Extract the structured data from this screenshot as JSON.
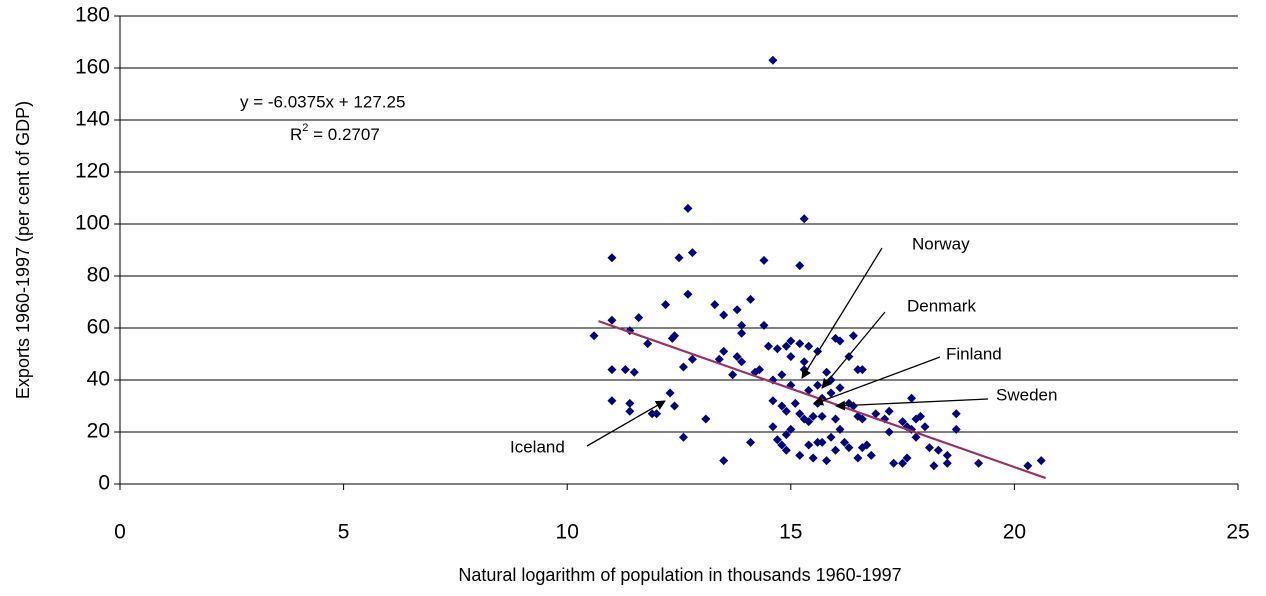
{
  "chart_data": {
    "type": "scatter",
    "xlabel": "Natural logarithm of population in thousands 1960-1997",
    "ylabel": "Exports 1960-1997 (per cent of GDP)",
    "xlim": [
      0,
      25
    ],
    "xticks": [
      0,
      5,
      10,
      15,
      20,
      25
    ],
    "ylim": [
      0,
      180
    ],
    "yticks": [
      0,
      20,
      40,
      60,
      80,
      100,
      120,
      140,
      160,
      180
    ],
    "grid": true,
    "series": [
      {
        "color": "#000080",
        "x": [
          14.6,
          12.7,
          15.3,
          11.0,
          12.5,
          12.8,
          14.4,
          15.2,
          12.7,
          14.1,
          13.8,
          13.3,
          13.5,
          12.2,
          11.0,
          11.6,
          10.6,
          11.4,
          12.4,
          12.35,
          11.8,
          13.9,
          13.9,
          14.4,
          13.5,
          13.4,
          12.8,
          12.6,
          11.0,
          11.3,
          11.5,
          13.8,
          13.9,
          14.3,
          14.5,
          14.7,
          14.9,
          15.0,
          15.2,
          15.4,
          15.6,
          15.0,
          14.8,
          15.3,
          16.1,
          16.4,
          16.0,
          16.3,
          16.5,
          16.6,
          14.2,
          14.6,
          13.7,
          11.0,
          11.4,
          11.4,
          12.0,
          11.9,
          12.3,
          12.4,
          13.1,
          12.6,
          13.5,
          14.1,
          14.6,
          14.7,
          14.8,
          14.9,
          14.9,
          15.0,
          15.2,
          15.3,
          15.4,
          15.5,
          15.4,
          15.5,
          15.6,
          15.7,
          15.9,
          16.0,
          15.8,
          15.2,
          15.6,
          15.7,
          15.9,
          16.0,
          16.1,
          16.2,
          16.3,
          16.4,
          16.5,
          16.6,
          16.7,
          16.8,
          16.5,
          16.6,
          16.9,
          17.1,
          17.2,
          17.2,
          17.3,
          17.5,
          17.6,
          17.5,
          17.6,
          17.7,
          17.8,
          17.9,
          17.7,
          17.8,
          18.0,
          18.1,
          18.2,
          18.3,
          18.5,
          18.5,
          18.7,
          18.7,
          19.2,
          20.3,
          20.6,
          14.6,
          14.8,
          15.0,
          15.1,
          15.4,
          14.9,
          15.6,
          15.9,
          16.1,
          16.3,
          15.7,
          15.8,
          15.3
        ],
        "values": [
          163,
          106,
          102,
          87,
          87,
          89,
          86,
          84,
          73,
          71,
          67,
          69,
          65,
          69,
          63,
          64,
          57,
          59,
          57,
          56,
          54,
          61,
          58,
          61,
          51,
          48,
          48,
          45,
          44,
          44,
          43,
          49,
          47,
          44,
          53,
          52,
          53,
          55,
          54,
          53,
          51,
          49,
          42,
          47,
          55,
          57,
          56,
          49,
          44,
          44,
          43,
          40,
          42,
          32,
          31,
          28,
          27,
          27,
          35,
          30,
          25,
          18,
          9,
          16,
          22,
          17,
          15,
          19,
          13,
          21,
          27,
          25,
          24,
          26,
          15,
          10,
          16,
          16,
          18,
          13,
          9,
          11,
          31,
          26,
          35,
          25,
          21,
          16,
          14,
          30,
          26,
          25,
          15,
          11,
          10,
          14,
          27,
          25,
          28,
          20,
          8,
          8,
          10,
          24,
          22,
          33,
          25,
          26,
          21,
          18,
          22,
          14,
          7,
          13,
          11,
          8,
          27,
          21,
          8,
          7,
          9,
          32,
          30,
          38,
          31,
          36,
          28,
          38,
          40,
          37,
          31,
          33,
          43,
          44
        ]
      }
    ],
    "trendline": {
      "color": "#993366",
      "slope": -6.0375,
      "intercept": 127.25,
      "xlim": [
        10.7,
        20.7
      ],
      "equation": "y = -6.0375x + 127.25",
      "r2_base": "R",
      "r2_sup": "2",
      "r2_rest": " = 0.2707"
    },
    "annotations": [
      "Norway",
      "Denmark",
      "Finland",
      "Sweden",
      "Iceland"
    ]
  }
}
